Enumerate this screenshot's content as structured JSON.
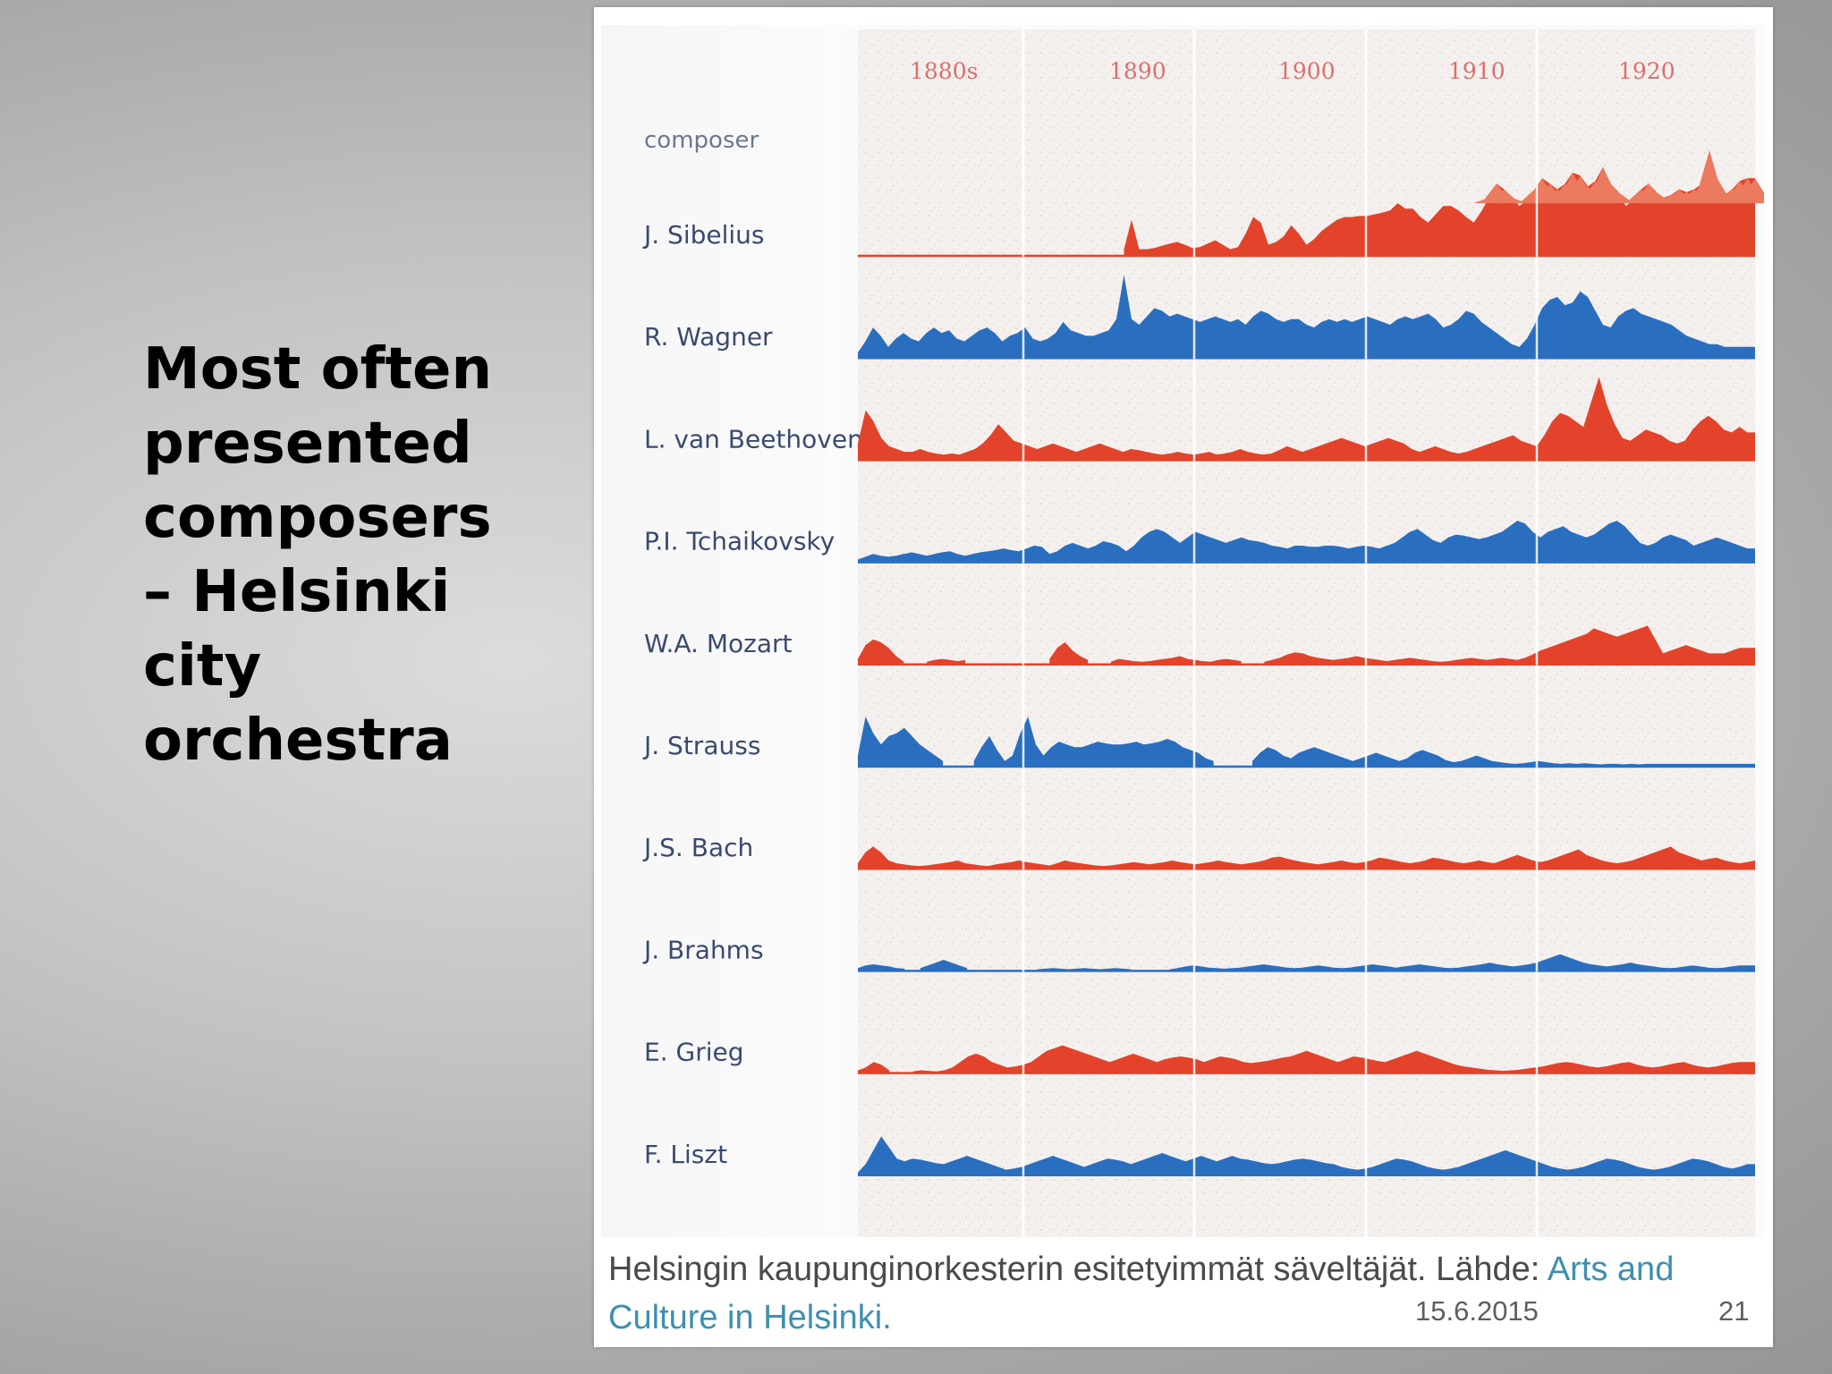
{
  "slide": {
    "title": "Most often\npresented\ncomposers\n– Helsinki\ncity\norchestra",
    "date": "15.6.2015",
    "number": "21"
  },
  "figure": {
    "caption_text": "Helsingin kaupunginorkesterin esitetyimmät säveltäjät. Lähde: ",
    "caption_link": "Arts and Culture in Helsinki."
  },
  "chart_data": {
    "type": "area",
    "x_axis_labels": [
      "1880s",
      "1890",
      "1900",
      "1910",
      "1920"
    ],
    "row_header": "composer",
    "colors": {
      "red": "#e2432a",
      "blue": "#2a6fbf",
      "red_light": "#ec7a5e"
    },
    "series": [
      {
        "name": "J. Sibelius",
        "color": "red",
        "values": [
          null,
          null,
          null,
          null,
          null,
          null,
          null,
          null,
          null,
          null,
          null,
          null,
          null,
          null,
          null,
          null,
          null,
          null,
          null,
          null,
          null,
          null,
          null,
          null,
          null,
          null,
          null,
          null,
          null,
          null,
          null,
          null,
          null,
          null,
          null,
          0.12,
          0.65,
          0.12,
          0.12,
          0.14,
          0.18,
          0.22,
          0.25,
          0.2,
          0.14,
          0.16,
          0.22,
          0.28,
          0.2,
          0.12,
          0.16,
          0.4,
          0.7,
          0.6,
          0.2,
          0.25,
          0.35,
          0.55,
          0.4,
          0.2,
          0.3,
          0.45,
          0.55,
          0.65,
          0.7,
          0.7,
          0.72,
          0.72,
          0.75,
          0.78,
          0.82,
          0.95,
          0.85,
          0.85,
          0.7,
          0.6,
          0.75,
          0.9,
          0.9,
          0.82,
          0.7,
          0.6,
          0.8,
          1.05,
          1.3,
          1.2,
          1.05,
          0.9,
          1.0,
          1.2,
          1.4,
          1.3,
          1.2,
          1.3,
          1.5,
          1.45,
          1.25,
          1.35,
          1.6,
          1.3,
          1.15,
          0.9,
          1.0,
          1.2,
          1.3,
          1.15,
          1.05,
          1.1,
          1.2,
          1.15,
          1.2,
          1.3,
          1.9,
          1.4,
          1.1,
          1.2,
          1.35,
          1.4,
          1.4
        ],
        "extra_light_peaks": true
      },
      {
        "name": "R. Wagner",
        "color": "blue",
        "values": [
          0.1,
          0.3,
          0.55,
          0.4,
          0.2,
          0.35,
          0.45,
          0.35,
          0.3,
          0.45,
          0.55,
          0.45,
          0.5,
          0.35,
          0.3,
          0.4,
          0.5,
          0.55,
          0.45,
          0.3,
          0.4,
          0.45,
          0.55,
          0.35,
          0.3,
          0.35,
          0.45,
          0.65,
          0.5,
          0.45,
          0.4,
          0.4,
          0.45,
          0.5,
          0.7,
          1.5,
          0.7,
          0.6,
          0.75,
          0.9,
          0.85,
          0.75,
          0.8,
          0.75,
          0.7,
          0.65,
          0.7,
          0.75,
          0.7,
          0.65,
          0.7,
          0.6,
          0.75,
          0.85,
          0.8,
          0.7,
          0.65,
          0.7,
          0.7,
          0.6,
          0.55,
          0.65,
          0.7,
          0.65,
          0.7,
          0.65,
          0.7,
          0.75,
          0.7,
          0.65,
          0.6,
          0.7,
          0.75,
          0.7,
          0.75,
          0.8,
          0.7,
          0.55,
          0.6,
          0.7,
          0.85,
          0.8,
          0.65,
          0.55,
          0.45,
          0.35,
          0.25,
          0.2,
          0.35,
          0.6,
          0.9,
          1.05,
          1.1,
          0.95,
          1.0,
          1.2,
          1.1,
          0.85,
          0.6,
          0.55,
          0.75,
          0.85,
          0.9,
          0.8,
          0.75,
          0.7,
          0.65,
          0.6,
          0.5,
          0.4,
          0.35,
          0.3,
          0.25,
          0.25,
          0.2,
          0.2,
          0.2,
          0.2,
          0.2
        ]
      },
      {
        "name": "L. van Beethoven",
        "color": "red",
        "values": [
          0.3,
          0.9,
          0.7,
          0.4,
          0.25,
          0.2,
          0.15,
          0.15,
          0.2,
          0.15,
          0.12,
          0.1,
          0.12,
          0.1,
          0.15,
          0.2,
          0.3,
          0.45,
          0.65,
          0.5,
          0.35,
          0.3,
          0.25,
          0.2,
          0.25,
          0.3,
          0.25,
          0.2,
          0.15,
          0.2,
          0.25,
          0.3,
          0.25,
          0.2,
          0.15,
          0.2,
          0.18,
          0.15,
          0.12,
          0.1,
          0.12,
          0.15,
          0.12,
          0.1,
          0.12,
          0.15,
          0.1,
          0.12,
          0.15,
          0.2,
          0.15,
          0.12,
          0.1,
          0.12,
          0.18,
          0.25,
          0.2,
          0.15,
          0.2,
          0.25,
          0.3,
          0.35,
          0.4,
          0.35,
          0.3,
          0.25,
          0.3,
          0.35,
          0.4,
          0.35,
          0.3,
          0.2,
          0.15,
          0.2,
          0.25,
          0.2,
          0.15,
          0.12,
          0.15,
          0.2,
          0.25,
          0.3,
          0.35,
          0.4,
          0.45,
          0.35,
          0.3,
          0.25,
          0.45,
          0.7,
          0.85,
          0.8,
          0.7,
          0.6,
          1.05,
          1.5,
          1.0,
          0.65,
          0.4,
          0.35,
          0.45,
          0.55,
          0.5,
          0.45,
          0.35,
          0.3,
          0.35,
          0.55,
          0.7,
          0.8,
          0.7,
          0.55,
          0.5,
          0.6,
          0.5,
          0.5
        ]
      },
      {
        "name": "P.I. Tchaikovsky",
        "color": "blue",
        "values": [
          0.05,
          0.1,
          0.15,
          0.12,
          0.1,
          0.12,
          0.15,
          0.18,
          0.15,
          0.12,
          0.15,
          0.18,
          0.2,
          0.15,
          0.12,
          0.15,
          0.18,
          0.2,
          0.22,
          0.25,
          0.22,
          0.2,
          0.25,
          0.3,
          0.28,
          0.15,
          0.2,
          0.3,
          0.35,
          0.3,
          0.25,
          0.3,
          0.38,
          0.35,
          0.3,
          0.2,
          0.3,
          0.45,
          0.55,
          0.6,
          0.55,
          0.45,
          0.35,
          0.45,
          0.55,
          0.5,
          0.45,
          0.4,
          0.35,
          0.4,
          0.45,
          0.4,
          0.38,
          0.35,
          0.3,
          0.28,
          0.25,
          0.3,
          0.3,
          0.28,
          0.28,
          0.3,
          0.3,
          0.28,
          0.25,
          0.28,
          0.3,
          0.28,
          0.25,
          0.3,
          0.35,
          0.45,
          0.55,
          0.6,
          0.5,
          0.4,
          0.35,
          0.45,
          0.5,
          0.48,
          0.45,
          0.42,
          0.45,
          0.5,
          0.55,
          0.65,
          0.75,
          0.7,
          0.55,
          0.45,
          0.55,
          0.6,
          0.65,
          0.55,
          0.5,
          0.45,
          0.5,
          0.6,
          0.7,
          0.75,
          0.65,
          0.5,
          0.35,
          0.3,
          0.35,
          0.45,
          0.5,
          0.45,
          0.4,
          0.3,
          0.35,
          0.4,
          0.45,
          0.4,
          0.35,
          0.3,
          0.25,
          0.25
        ]
      },
      {
        "name": "W.A. Mozart",
        "color": "red",
        "values": [
          0.1,
          0.35,
          0.45,
          0.4,
          0.3,
          0.15,
          0.05,
          null,
          null,
          0.05,
          0.08,
          0.1,
          0.08,
          0.06,
          0.08,
          null,
          null,
          null,
          null,
          null,
          null,
          null,
          null,
          null,
          null,
          0.1,
          0.3,
          0.4,
          0.25,
          0.15,
          0.08,
          null,
          null,
          0.05,
          0.1,
          0.08,
          0.06,
          0.05,
          0.06,
          0.08,
          0.1,
          0.12,
          0.15,
          0.1,
          0.08,
          0.06,
          0.05,
          0.08,
          0.1,
          0.08,
          0.06,
          null,
          null,
          0.05,
          0.08,
          0.12,
          0.18,
          0.22,
          0.2,
          0.15,
          0.12,
          0.1,
          0.08,
          0.1,
          0.12,
          0.15,
          0.12,
          0.1,
          0.08,
          0.06,
          0.08,
          0.1,
          0.12,
          0.1,
          0.08,
          0.06,
          0.05,
          0.06,
          0.08,
          0.1,
          0.12,
          0.1,
          0.08,
          0.1,
          0.12,
          0.1,
          0.08,
          0.12,
          0.18,
          0.25,
          0.3,
          0.35,
          0.4,
          0.45,
          0.5,
          0.55,
          0.65,
          0.6,
          0.55,
          0.5,
          0.55,
          0.6,
          0.65,
          0.7,
          0.45,
          0.2,
          0.25,
          0.3,
          0.35,
          0.3,
          0.25,
          0.2,
          0.2,
          0.2,
          0.25,
          0.3,
          0.3,
          0.3
        ]
      },
      {
        "name": "J. Strauss",
        "color": "blue",
        "values": [
          0.2,
          0.9,
          0.6,
          0.4,
          0.55,
          0.6,
          0.7,
          0.55,
          0.4,
          0.3,
          0.2,
          0.1,
          null,
          null,
          null,
          0.1,
          0.35,
          0.55,
          0.3,
          0.1,
          0.2,
          0.6,
          0.9,
          0.4,
          0.2,
          0.35,
          0.45,
          0.4,
          0.35,
          0.35,
          0.4,
          0.45,
          0.42,
          0.4,
          0.4,
          0.42,
          0.45,
          0.4,
          0.42,
          0.45,
          0.5,
          0.45,
          0.35,
          0.3,
          0.25,
          0.15,
          0.1,
          null,
          null,
          null,
          null,
          0.1,
          0.25,
          0.35,
          0.3,
          0.2,
          0.15,
          0.25,
          0.3,
          0.35,
          0.3,
          0.25,
          0.2,
          0.15,
          0.1,
          0.15,
          0.2,
          0.25,
          0.2,
          0.15,
          0.1,
          0.15,
          0.25,
          0.3,
          0.25,
          0.2,
          0.12,
          0.08,
          0.1,
          0.15,
          0.2,
          0.15,
          0.1,
          0.08,
          0.06,
          0.05,
          0.06,
          0.08,
          0.1,
          0.08,
          0.06,
          0.05,
          0.06,
          0.05,
          0.06,
          0.05,
          0.04,
          0.05,
          0.05,
          0.04,
          0.05,
          0.04,
          0.05,
          0.05,
          0.05,
          0.05,
          0.05,
          0.05,
          0.05,
          0.05,
          0.05,
          0.05,
          0.05,
          0.05,
          0.05,
          0.05,
          0.05
        ]
      },
      {
        "name": "J.S. Bach",
        "color": "red",
        "values": [
          0.1,
          0.3,
          0.4,
          0.3,
          0.15,
          0.1,
          0.08,
          0.06,
          0.05,
          0.06,
          0.08,
          0.1,
          0.12,
          0.15,
          0.1,
          0.08,
          0.06,
          0.05,
          0.08,
          0.1,
          0.12,
          0.15,
          0.12,
          0.1,
          0.08,
          0.06,
          0.1,
          0.15,
          0.12,
          0.1,
          0.08,
          0.06,
          0.05,
          0.06,
          0.08,
          0.1,
          0.12,
          0.1,
          0.08,
          0.1,
          0.12,
          0.15,
          0.12,
          0.1,
          0.08,
          0.1,
          0.12,
          0.15,
          0.12,
          0.1,
          0.08,
          0.1,
          0.12,
          0.15,
          0.2,
          0.22,
          0.18,
          0.15,
          0.12,
          0.1,
          0.08,
          0.1,
          0.12,
          0.15,
          0.12,
          0.1,
          0.12,
          0.15,
          0.2,
          0.18,
          0.15,
          0.12,
          0.1,
          0.12,
          0.15,
          0.2,
          0.18,
          0.15,
          0.12,
          0.1,
          0.12,
          0.15,
          0.12,
          0.1,
          0.15,
          0.2,
          0.25,
          0.2,
          0.15,
          0.12,
          0.15,
          0.2,
          0.25,
          0.3,
          0.35,
          0.25,
          0.2,
          0.15,
          0.12,
          0.1,
          0.12,
          0.15,
          0.2,
          0.25,
          0.3,
          0.35,
          0.4,
          0.3,
          0.25,
          0.2,
          0.15,
          0.18,
          0.2,
          0.15,
          0.12,
          0.1,
          0.12,
          0.15
        ]
      },
      {
        "name": "J. Brahms",
        "color": "blue",
        "values": [
          0.05,
          0.1,
          0.12,
          0.1,
          0.08,
          0.05,
          0.04,
          null,
          0.05,
          0.1,
          0.15,
          0.2,
          0.15,
          0.1,
          0.05,
          null,
          null,
          null,
          null,
          null,
          null,
          null,
          null,
          0.03,
          0.04,
          0.05,
          0.04,
          0.03,
          0.04,
          0.05,
          0.04,
          0.03,
          0.04,
          0.05,
          0.04,
          0.03,
          null,
          null,
          null,
          null,
          0.03,
          0.05,
          0.08,
          0.1,
          0.08,
          0.06,
          0.05,
          0.04,
          0.05,
          0.06,
          0.08,
          0.1,
          0.12,
          0.1,
          0.08,
          0.06,
          0.05,
          0.06,
          0.08,
          0.1,
          0.08,
          0.06,
          0.05,
          0.06,
          0.08,
          0.1,
          0.12,
          0.1,
          0.08,
          0.06,
          0.08,
          0.1,
          0.12,
          0.1,
          0.08,
          0.06,
          0.05,
          0.06,
          0.08,
          0.1,
          0.12,
          0.15,
          0.12,
          0.1,
          0.08,
          0.1,
          0.12,
          0.15,
          0.2,
          0.25,
          0.3,
          0.25,
          0.2,
          0.15,
          0.12,
          0.1,
          0.08,
          0.1,
          0.12,
          0.15,
          0.12,
          0.1,
          0.08,
          0.06,
          0.05,
          0.06,
          0.08,
          0.1,
          0.08,
          0.06,
          0.05,
          0.06,
          0.08,
          0.1,
          0.1,
          0.1
        ]
      },
      {
        "name": "E. Grieg",
        "color": "red",
        "values": [
          0.05,
          0.1,
          0.2,
          0.15,
          0.05,
          null,
          null,
          0.03,
          0.05,
          0.04,
          0.03,
          0.05,
          0.1,
          0.2,
          0.3,
          0.35,
          0.3,
          0.2,
          0.15,
          0.1,
          0.12,
          0.15,
          0.2,
          0.3,
          0.4,
          0.45,
          0.5,
          0.45,
          0.4,
          0.35,
          0.3,
          0.25,
          0.2,
          0.25,
          0.3,
          0.35,
          0.3,
          0.25,
          0.2,
          0.25,
          0.28,
          0.3,
          0.28,
          0.25,
          0.2,
          0.25,
          0.3,
          0.28,
          0.25,
          0.2,
          0.18,
          0.2,
          0.22,
          0.25,
          0.28,
          0.3,
          0.35,
          0.4,
          0.35,
          0.3,
          0.25,
          0.2,
          0.25,
          0.3,
          0.28,
          0.25,
          0.22,
          0.2,
          0.25,
          0.3,
          0.35,
          0.4,
          0.35,
          0.3,
          0.25,
          0.2,
          0.15,
          0.12,
          0.1,
          0.08,
          0.06,
          0.05,
          0.04,
          0.05,
          0.06,
          0.08,
          0.1,
          0.12,
          0.15,
          0.18,
          0.2,
          0.18,
          0.15,
          0.12,
          0.1,
          0.12,
          0.15,
          0.18,
          0.2,
          0.15,
          0.12,
          0.1,
          0.12,
          0.15,
          0.18,
          0.2,
          0.15,
          0.12,
          0.1,
          0.12,
          0.15,
          0.18,
          0.2,
          0.2,
          0.2
        ]
      },
      {
        "name": "F. Liszt",
        "color": "blue",
        "values": [
          0.05,
          0.2,
          0.45,
          0.7,
          0.5,
          0.3,
          0.25,
          0.3,
          0.28,
          0.25,
          0.22,
          0.2,
          0.25,
          0.3,
          0.35,
          0.3,
          0.25,
          0.2,
          0.15,
          0.1,
          0.12,
          0.15,
          0.2,
          0.25,
          0.3,
          0.35,
          0.3,
          0.25,
          0.2,
          0.15,
          0.2,
          0.25,
          0.3,
          0.28,
          0.25,
          0.2,
          0.25,
          0.3,
          0.35,
          0.4,
          0.35,
          0.3,
          0.25,
          0.3,
          0.35,
          0.3,
          0.25,
          0.3,
          0.35,
          0.3,
          0.28,
          0.25,
          0.22,
          0.2,
          0.22,
          0.25,
          0.28,
          0.3,
          0.28,
          0.25,
          0.22,
          0.2,
          0.15,
          0.12,
          0.1,
          0.12,
          0.15,
          0.2,
          0.25,
          0.3,
          0.28,
          0.25,
          0.2,
          0.15,
          0.12,
          0.1,
          0.12,
          0.15,
          0.2,
          0.25,
          0.3,
          0.35,
          0.4,
          0.45,
          0.4,
          0.35,
          0.3,
          0.25,
          0.2,
          0.15,
          0.12,
          0.1,
          0.12,
          0.15,
          0.2,
          0.25,
          0.3,
          0.28,
          0.25,
          0.2,
          0.15,
          0.12,
          0.1,
          0.12,
          0.15,
          0.2,
          0.25,
          0.3,
          0.28,
          0.25,
          0.2,
          0.15,
          0.12,
          0.15,
          0.2,
          0.2
        ]
      }
    ]
  }
}
